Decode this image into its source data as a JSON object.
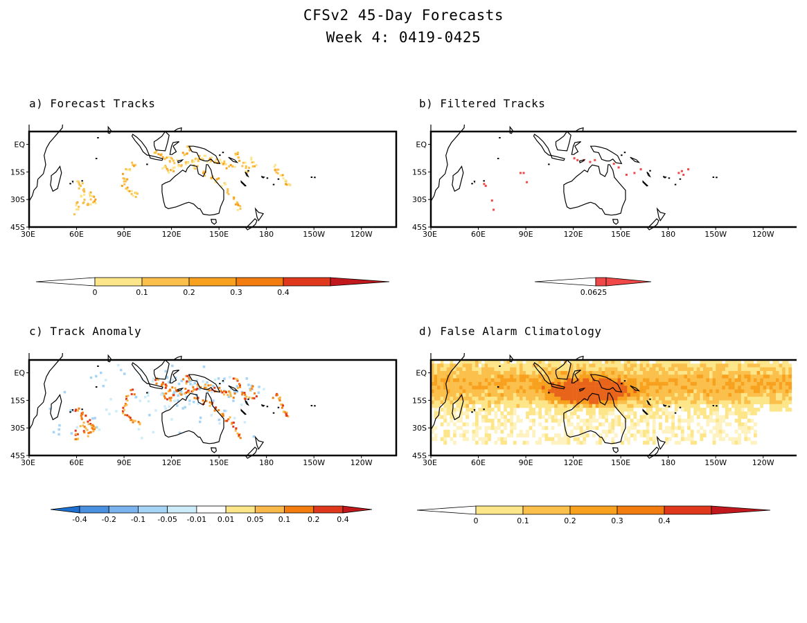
{
  "title_line1": "CFSv2 45-Day Forecasts",
  "title_line2": "Week 4: 0419-0425",
  "axes": {
    "x_ticks": [
      "30E",
      "60E",
      "90E",
      "120E",
      "150E",
      "180",
      "150W",
      "120W"
    ],
    "y_ticks": [
      "EQ",
      "15S",
      "30S",
      "45S"
    ]
  },
  "panels": [
    {
      "label": "a) Forecast Tracks",
      "colorbar": {
        "ticks": [
          "0",
          "0.1",
          "0.2",
          "0.3",
          "0.4"
        ],
        "colors": [
          "#ffffff",
          "#fde68a",
          "#fbc04b",
          "#f8a11f",
          "#f27c10",
          "#e0381c",
          "#c0181c"
        ]
      }
    },
    {
      "label": "b) Filtered Tracks",
      "colorbar": {
        "ticks": [
          "0.0625"
        ],
        "colors": [
          "#ffffff",
          "#f04848"
        ]
      }
    },
    {
      "label": "c) Track Anomaly",
      "colorbar": {
        "ticks": [
          "-0.4",
          "-0.2",
          "-0.1",
          "-0.05",
          "-0.01",
          "0.01",
          "0.05",
          "0.1",
          "0.2",
          "0.4"
        ],
        "colors": [
          "#1e6fd0",
          "#4a90e0",
          "#7ab4ee",
          "#a6d4f6",
          "#cdecfa",
          "#ffffff",
          "#fde68a",
          "#f8b84a",
          "#f27c10",
          "#e0381c",
          "#c0181c"
        ]
      }
    },
    {
      "label": "d) False Alarm Climatology",
      "colorbar": {
        "ticks": [
          "0",
          "0.1",
          "0.2",
          "0.3",
          "0.4"
        ],
        "colors": [
          "#ffffff",
          "#fde68a",
          "#fbc04b",
          "#f8a11f",
          "#f27c10",
          "#e0381c",
          "#c0181c"
        ]
      }
    }
  ]
}
